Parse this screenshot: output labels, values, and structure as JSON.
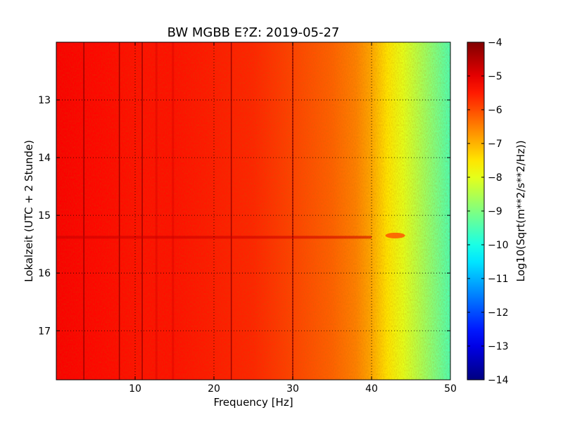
{
  "chart_data": {
    "type": "heatmap",
    "title": "BW MGBB E?Z: 2019-05-27",
    "xlabel": "Frequency [Hz]",
    "ylabel": "Lokalzeit (UTC + 2 Stunde)",
    "xlim": [
      0,
      50
    ],
    "ylim": [
      12.0,
      17.85
    ],
    "y_inverted": true,
    "xticks": [
      10,
      20,
      30,
      40,
      50
    ],
    "yticks": [
      13,
      14,
      15,
      16,
      17
    ],
    "grid": true,
    "grid_style": "dotted",
    "colormap": "jet",
    "colorbar": {
      "label": "Log10(Sqrt(m**2/s**2/Hz))",
      "range": [
        -14,
        -4
      ],
      "ticks": [
        -4,
        -5,
        -6,
        -7,
        -8,
        -9,
        -10,
        -11,
        -12,
        -13,
        -14
      ]
    },
    "background_level_profile": {
      "frequency_hz": [
        0,
        5,
        10,
        15,
        20,
        25,
        30,
        35,
        38,
        40,
        42,
        44,
        46,
        48,
        50
      ],
      "log10_amplitude": [
        -5.2,
        -5.3,
        -5.4,
        -5.4,
        -5.5,
        -5.6,
        -5.9,
        -6.2,
        -6.5,
        -6.9,
        -7.5,
        -8.0,
        -8.5,
        -9.0,
        -9.5
      ]
    },
    "vertical_lines_hz": [
      3.5,
      8.0,
      10.9,
      22.2,
      30.0,
      12.7,
      14.8
    ],
    "broadband_events_local_hour": [
      15.38
    ],
    "localized_features": [
      {
        "frequency_hz": 43.0,
        "local_hour": 15.35,
        "log10_amplitude": -6.0
      }
    ]
  }
}
